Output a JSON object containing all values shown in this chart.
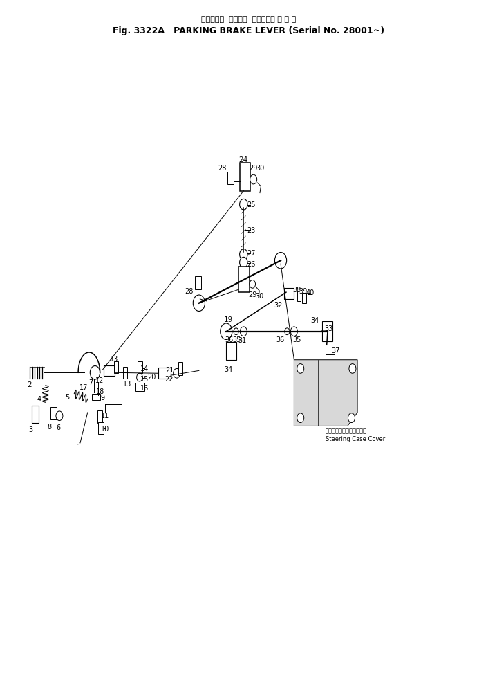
{
  "title_line1": "パーキング  ブレーキ  レバー（適 用 号 機",
  "title_line2": "Fig. 3322A   PARKING BRAKE LEVER (Serial No. 28001~)",
  "background_color": "#ffffff",
  "line_color": "#000000",
  "steering_label_jp": "ステアリングケースカバー",
  "steering_label_en": "Steering Case Cover"
}
